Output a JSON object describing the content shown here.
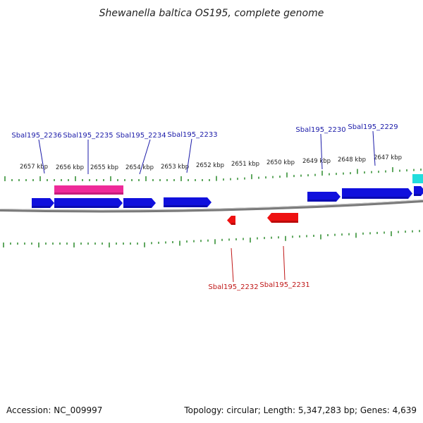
{
  "title": "Shewanella baltica OS195, complete genome",
  "footer": {
    "accession": "Accession: NC_009997",
    "summary": "Topology: circular; Length: 5,347,283 bp; Genes: 4,639"
  },
  "colors": {
    "forward_gene": "#1010dd",
    "reverse_gene": "#ee1111",
    "pink_feature": "#ee2a99",
    "cyan_feature": "#22dddd",
    "ruler": "#2a8a2a",
    "backbone": "#7a7a7a",
    "forward_label": "#1a1aa8",
    "reverse_label": "#c01818"
  },
  "ruler_labels": [
    "2657 kbp",
    "2656 kbp",
    "2655 kbp",
    "2654 kbp",
    "2653 kbp",
    "2652 kbp",
    "2651 kbp",
    "2650 kbp",
    "2649 kbp",
    "2648 kbp",
    "2647 kbp"
  ],
  "forward_labels": [
    "Sbal195_2236",
    "Sbal195_2235",
    "Sbal195_2234",
    "Sbal195_2233",
    "Sbal195_2230",
    "Sbal195_2229"
  ],
  "reverse_labels": [
    "Sbal195_2232",
    "Sbal195_2231"
  ]
}
